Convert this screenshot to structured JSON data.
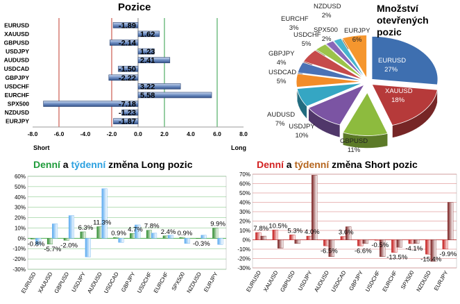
{
  "chart_data": [
    {
      "type": "bar",
      "orientation": "horizontal",
      "title": "Pozice",
      "categories": [
        "EURUSD",
        "XAUUSD",
        "GBPUSD",
        "USDJPY",
        "AUDUSD",
        "USDCAD",
        "GBPJPY",
        "USDCHF",
        "EURCHF",
        "SPX500",
        "NZDUSD",
        "EURJPY"
      ],
      "values": [
        -1.89,
        1.62,
        -2.14,
        1.23,
        2.41,
        -1.5,
        -2.22,
        3.22,
        5.58,
        -7.18,
        -1.23,
        -1.87
      ],
      "value_labels": [
        "-1.89",
        "1.62",
        "-2.14",
        "1.23",
        "2.41",
        "-1.50",
        "-2.22",
        "3.22",
        "5.58",
        "-7.18",
        "-1.23",
        "-1.87"
      ],
      "xlim": [
        -8,
        8
      ],
      "xticks": [
        "-8.0",
        "-6.0",
        "-4.0",
        "-2.0",
        "0.0",
        "2.0",
        "4.0",
        "6.0",
        "8.0"
      ],
      "xlabel_left": "Short",
      "xlabel_right": "Long",
      "colors": {
        "bar": "#6f8fc3",
        "red_line": "#c0392b",
        "green_line": "#2e9e44"
      }
    },
    {
      "type": "pie",
      "title_lines": [
        "Množství",
        "otevřených",
        "pozic"
      ],
      "slices": [
        {
          "label": "EURUSD",
          "value": 27,
          "text": "27%",
          "color": "#3e6fb0"
        },
        {
          "label": "XAUUSD",
          "value": 18,
          "text": "18%",
          "color": "#b63a3a"
        },
        {
          "label": "GBPUSD",
          "value": 11,
          "text": "11%",
          "color": "#8dbb3e"
        },
        {
          "label": "USDJPY",
          "value": 10,
          "text": "10%",
          "color": "#7b54a3"
        },
        {
          "label": "AUDUSD",
          "value": 7,
          "text": "7%",
          "color": "#35a6c3"
        },
        {
          "label": "USDCAD",
          "value": 5,
          "text": "5%",
          "color": "#f28c28"
        },
        {
          "label": "GBPJPY",
          "value": 4,
          "text": "4%",
          "color": "#4a72b5"
        },
        {
          "label": "USDCHF",
          "value": 5,
          "text": "5%",
          "color": "#c64b4b"
        },
        {
          "label": "EURCHF",
          "value": 3,
          "text": "3%",
          "color": "#9cc34a"
        },
        {
          "label": "SPX500",
          "value": 2,
          "text": "2%",
          "color": "#8866b8"
        },
        {
          "label": "NZDUSD",
          "value": 2,
          "text": "2%",
          "color": "#47b4cf"
        },
        {
          "label": "EURJPY",
          "value": 6,
          "text": "6%",
          "color": "#f5962e"
        }
      ]
    },
    {
      "type": "bar",
      "title_parts": [
        "Denní",
        " a ",
        "týdenní",
        " změna Long pozic"
      ],
      "categories": [
        "EURUSD",
        "XAUUSD",
        "GBPUSD",
        "USDJPY",
        "AUDUSD",
        "USDCAD",
        "GBPJPY",
        "USDCHF",
        "EURCHF",
        "SPX500",
        "NZDUSD",
        "EURJPY"
      ],
      "series": [
        {
          "name": "Denní",
          "values": [
            -0.8,
            -5.7,
            -2.0,
            6.3,
            11.3,
            0.9,
            4.7,
            7.8,
            2.4,
            0.9,
            -0.3,
            9.9
          ],
          "color": "#2e8b2e"
        },
        {
          "name": "Týdenní",
          "values": [
            -6,
            14,
            22,
            -18,
            48,
            -4,
            13,
            5,
            3,
            -5,
            3,
            -6
          ],
          "color": "#5aaaf0"
        }
      ],
      "data_labels": [
        "-0.8%",
        "-5.7%",
        "-2.0%",
        "6.3%",
        "11.3%",
        "0.9%",
        "4.7%",
        "7.8%",
        "2.4%",
        "0.9%",
        "-0.3%",
        "9.9%"
      ],
      "ylim": [
        -30,
        60
      ],
      "yticks": [
        "-30%",
        "-20%",
        "-10%",
        "0%",
        "10%",
        "20%",
        "30%",
        "40%",
        "50%",
        "60%"
      ],
      "colors": {
        "grid": "#4caf50",
        "title_green": "#1e9b3a",
        "title_blue": "#2aa0e0"
      }
    },
    {
      "type": "bar",
      "title_parts": [
        "Denní",
        " a ",
        "týdenní",
        " změna Short pozic"
      ],
      "categories": [
        "EURUSD",
        "XAUUSD",
        "GBPUSD",
        "USDJPY",
        "AUDUSD",
        "USDCAD",
        "GBPJPY",
        "USDCHF",
        "EURCHF",
        "SPX500",
        "NZDUSD",
        "EURJPY"
      ],
      "series": [
        {
          "name": "Denní",
          "values": [
            7.8,
            10.5,
            5.3,
            4.0,
            -6.5,
            3.6,
            -6.6,
            -0.5,
            -13.5,
            -4.1,
            -15.4,
            -9.9
          ],
          "color": "#c41818"
        },
        {
          "name": "Týdenní",
          "values": [
            4,
            -9,
            -4,
            69,
            -18,
            14,
            -4,
            -18,
            -8,
            -4,
            -23,
            40
          ],
          "color": "#7a2020"
        }
      ],
      "data_labels": [
        "7.8%",
        "10.5%",
        "5.3%",
        "4.0%",
        "-6.5%",
        "3.6%",
        "-6.6%",
        "-0.5%",
        "-13.5%",
        "-4.1%",
        "-15.4%",
        "-9.9%"
      ],
      "ylim": [
        -30,
        70
      ],
      "yticks": [
        "-30%",
        "-20%",
        "-10%",
        "0%",
        "10%",
        "20%",
        "30%",
        "40%",
        "50%",
        "60%",
        "70%"
      ],
      "colors": {
        "grid": "#c94a4a",
        "title_red": "#d21f1f",
        "title_brown": "#b5651d"
      }
    }
  ]
}
